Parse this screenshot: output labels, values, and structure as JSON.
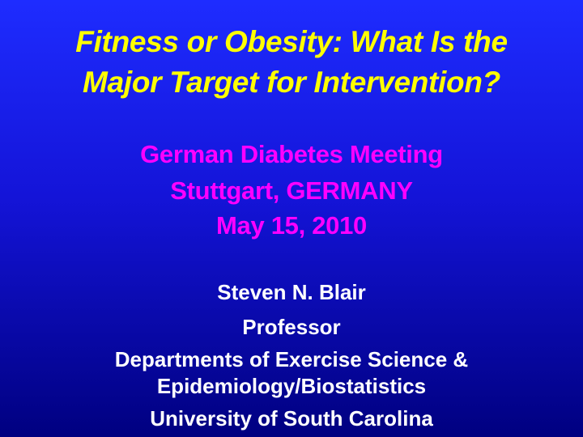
{
  "slide": {
    "title_lines": [
      "Fitness or Obesity: What Is the",
      "Major Target for Intervention?"
    ],
    "event_lines": [
      "German Diabetes Meeting",
      "Stuttgart, GERMANY",
      "May 15, 2010"
    ],
    "author_lines": [
      "Steven N. Blair",
      "Professor",
      "Departments of Exercise Science &",
      "Epidemiology/Biostatistics",
      "University of South Carolina"
    ],
    "colors": {
      "title": "#ffff00",
      "event": "#ff00ff",
      "author": "#ffffff",
      "background_top": "#1e2cff",
      "background_bottom": "#000080"
    }
  }
}
